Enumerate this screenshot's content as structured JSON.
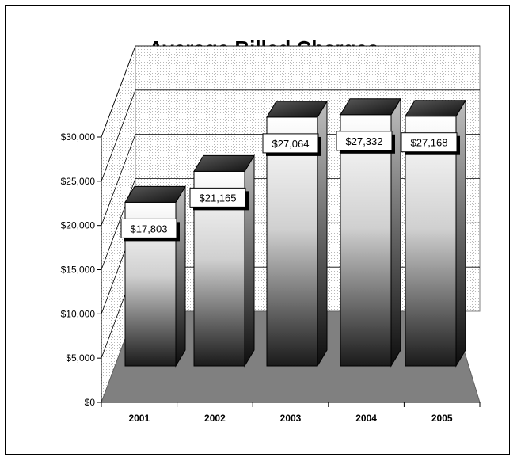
{
  "chart_data": {
    "type": "bar",
    "title": "Average Billed Charges",
    "categories": [
      "2001",
      "2002",
      "2003",
      "2004",
      "2005"
    ],
    "values": [
      17803,
      21165,
      27064,
      27332,
      27168
    ],
    "data_labels": [
      "$17,803",
      "$21,165",
      "$27,064",
      "$27,332",
      "$27,168"
    ],
    "yticks": [
      0,
      5000,
      10000,
      15000,
      20000,
      25000,
      30000
    ],
    "ytick_labels": [
      "$0",
      "$5,000",
      "$10,000",
      "$15,000",
      "$20,000",
      "$25,000",
      "$30,000"
    ],
    "ylim": [
      0,
      30000
    ],
    "xlabel": "",
    "ylabel": "",
    "grid": true,
    "style": "3d-column",
    "colors": {
      "floor": "#808080",
      "bar_top": "#333333",
      "wall_dots": "#bfbfbf"
    }
  }
}
